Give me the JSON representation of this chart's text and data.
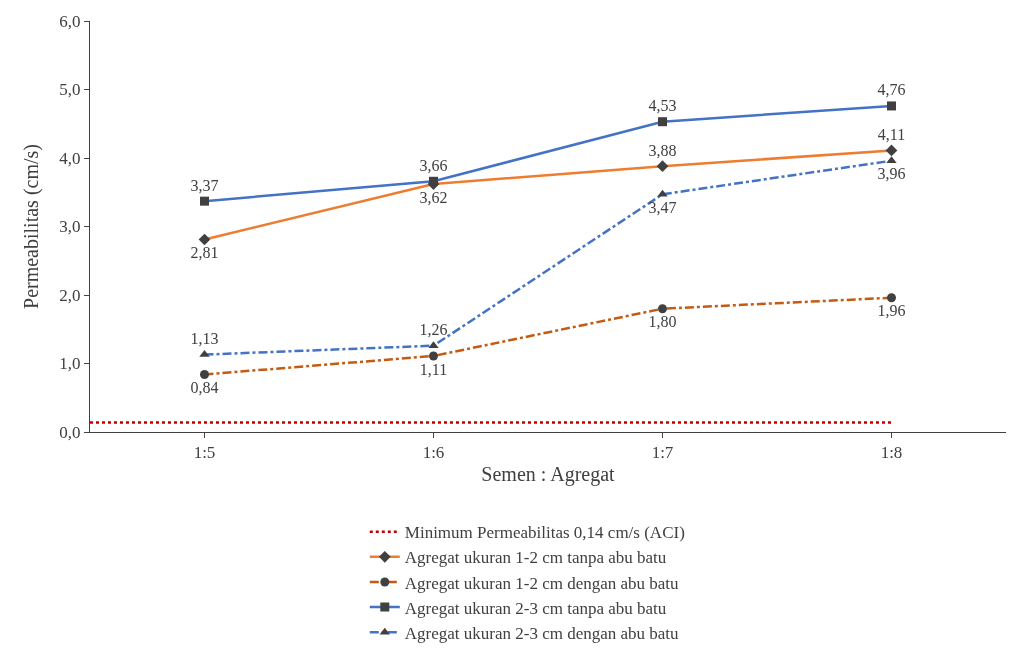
{
  "chart_data": {
    "type": "line",
    "xlabel": "Semen : Agregat",
    "ylabel": "Permeabilitas (cm/s)",
    "categories": [
      "1:5",
      "1:6",
      "1:7",
      "1:8"
    ],
    "ylim": [
      0,
      6
    ],
    "yticks": [
      {
        "value": 0,
        "label": "0,0"
      },
      {
        "value": 1,
        "label": "1,0"
      },
      {
        "value": 2,
        "label": "2,0"
      },
      {
        "value": 3,
        "label": "3,0"
      },
      {
        "value": 4,
        "label": "4,0"
      },
      {
        "value": 5,
        "label": "5,0"
      },
      {
        "value": 6,
        "label": "6,0"
      }
    ],
    "legend": "bottom",
    "ref_lines": [
      {
        "axis": "y",
        "value": 0.14,
        "label": "Minimum Permeabilitas 0,14 cm/s (ACI)",
        "color": "#c00000",
        "line_style": "dotted"
      }
    ],
    "series": [
      {
        "name": "Agregat ukuran 1-2 cm tanpa abu batu",
        "color": "#ed7d31",
        "line_style": "solid",
        "marker": "diamond",
        "values": [
          2.81,
          3.62,
          3.88,
          4.11
        ],
        "value_labels": [
          "2,81",
          "3,62",
          "3,88",
          "4,11"
        ]
      },
      {
        "name": "Agregat ukuran 1-2 cm dengan abu batu",
        "color": "#c55a11",
        "line_style": "dashdot",
        "marker": "circle",
        "values": [
          0.84,
          1.11,
          1.8,
          1.96
        ],
        "value_labels": [
          "0,84",
          "1,11",
          "1,80",
          "1,96"
        ]
      },
      {
        "name": "Agregat ukuran 2-3 cm tanpa abu batu",
        "color": "#4472c4",
        "line_style": "solid",
        "marker": "square",
        "values": [
          3.37,
          3.66,
          4.53,
          4.76
        ],
        "value_labels": [
          "3,37",
          "3,66",
          "4,53",
          "4,76"
        ]
      },
      {
        "name": "Agregat ukuran 2-3 cm dengan abu batu",
        "color": "#4472c4",
        "line_style": "dashdot",
        "marker": "triangle",
        "values": [
          1.13,
          1.26,
          3.47,
          3.96
        ],
        "value_labels": [
          "1,13",
          "1,26",
          "3,47",
          "3,96"
        ]
      }
    ]
  }
}
